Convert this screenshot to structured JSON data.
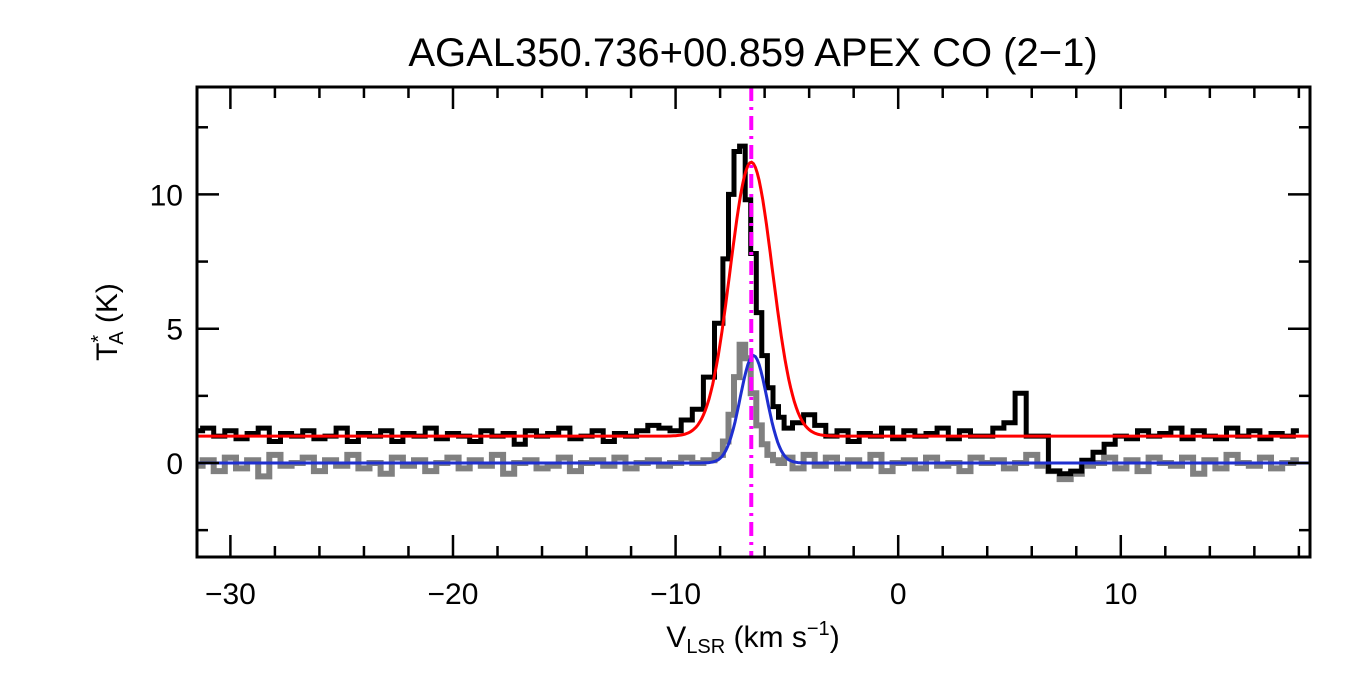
{
  "chart_data": {
    "type": "line",
    "title": "AGAL350.736+00.859  APEX CO (2−1)",
    "xlabel": {
      "main": "V",
      "sub": "LSR",
      "unit_pre": " (km s",
      "sup": "−1",
      "unit_post": ")"
    },
    "ylabel": {
      "main": "T",
      "sub": "A",
      "sup": "*",
      "unit": " (K)"
    },
    "xlim": [
      -31.5,
      18.5
    ],
    "ylim": [
      -3.5,
      14.0
    ],
    "xticks": [
      -30,
      -20,
      -10,
      0,
      10
    ],
    "xtick_labels": [
      "−30",
      "−20",
      "−10",
      "0",
      "10"
    ],
    "yticks": [
      0,
      5,
      10
    ],
    "ytick_labels": [
      "0",
      "5",
      "10"
    ],
    "vline": {
      "x": -6.6,
      "color": "#ff00ff",
      "style": "dash-dot"
    },
    "series": [
      {
        "style": "step",
        "color": "#000000",
        "description": "observed spectrum (offset +1 K)",
        "x": [
          -31.5,
          -31.0,
          -30.5,
          -30.0,
          -29.5,
          -29.0,
          -28.5,
          -28.0,
          -27.5,
          -27.0,
          -26.5,
          -26.0,
          -25.5,
          -25.0,
          -24.5,
          -24.0,
          -23.5,
          -23.0,
          -22.5,
          -22.0,
          -21.5,
          -21.0,
          -20.5,
          -20.0,
          -19.5,
          -19.0,
          -18.5,
          -18.0,
          -17.5,
          -17.0,
          -16.5,
          -16.0,
          -15.5,
          -15.0,
          -14.5,
          -14.0,
          -13.5,
          -13.0,
          -12.5,
          -12.0,
          -11.5,
          -11.0,
          -10.5,
          -10.0,
          -9.5,
          -9.0,
          -8.5,
          -8.0,
          -7.75,
          -7.5,
          -7.25,
          -7.0,
          -6.75,
          -6.5,
          -6.25,
          -6.0,
          -5.75,
          -5.5,
          -5.25,
          -5.0,
          -4.5,
          -4.0,
          -3.5,
          -3.0,
          -2.5,
          -2.0,
          -1.5,
          -1.0,
          -0.5,
          0.0,
          0.5,
          1.0,
          1.5,
          2.0,
          2.5,
          3.0,
          3.5,
          4.0,
          4.5,
          5.0,
          5.5,
          6.0,
          6.5,
          7.0,
          7.5,
          8.0,
          8.5,
          9.0,
          9.5,
          10.0,
          10.5,
          11.0,
          11.5,
          12.0,
          12.5,
          13.0,
          13.5,
          14.0,
          14.5,
          15.0,
          15.5,
          16.0,
          16.5,
          17.0,
          17.5,
          18.0
        ],
        "y": [
          1.2,
          1.3,
          1.0,
          1.2,
          0.9,
          1.1,
          1.3,
          0.8,
          1.1,
          1.0,
          1.2,
          0.9,
          1.0,
          1.3,
          0.8,
          1.1,
          1.0,
          1.2,
          0.8,
          1.1,
          1.0,
          1.3,
          0.9,
          1.1,
          1.0,
          0.8,
          1.2,
          1.0,
          1.1,
          0.7,
          1.2,
          1.0,
          1.1,
          1.3,
          0.9,
          1.0,
          1.2,
          0.8,
          1.1,
          1.0,
          1.2,
          1.4,
          1.3,
          1.2,
          1.6,
          2.0,
          3.2,
          5.2,
          7.6,
          10.0,
          11.6,
          11.8,
          9.8,
          7.8,
          5.6,
          4.0,
          2.8,
          2.1,
          1.7,
          1.3,
          1.5,
          1.8,
          1.4,
          1.0,
          1.2,
          0.8,
          1.1,
          1.0,
          1.3,
          0.9,
          1.2,
          1.0,
          1.1,
          1.3,
          0.9,
          1.2,
          1.0,
          1.0,
          1.3,
          1.5,
          2.6,
          1.0,
          1.0,
          -0.3,
          -0.4,
          -0.3,
          0.1,
          0.4,
          0.7,
          1.0,
          0.9,
          1.2,
          1.0,
          1.1,
          1.3,
          0.9,
          1.2,
          1.0,
          0.9,
          1.3,
          1.0,
          1.2,
          0.9,
          1.1,
          1.0,
          1.2
        ]
      },
      {
        "style": "step",
        "color": "#808080",
        "description": "residual spectrum",
        "x": [
          -31.5,
          -31.0,
          -30.5,
          -30.0,
          -29.5,
          -29.0,
          -28.5,
          -28.0,
          -27.5,
          -27.0,
          -26.5,
          -26.0,
          -25.5,
          -25.0,
          -24.5,
          -24.0,
          -23.5,
          -23.0,
          -22.5,
          -22.0,
          -21.5,
          -21.0,
          -20.5,
          -20.0,
          -19.5,
          -19.0,
          -18.5,
          -18.0,
          -17.5,
          -17.0,
          -16.5,
          -16.0,
          -15.5,
          -15.0,
          -14.5,
          -14.0,
          -13.5,
          -13.0,
          -12.5,
          -12.0,
          -11.5,
          -11.0,
          -10.5,
          -10.0,
          -9.5,
          -9.0,
          -8.5,
          -8.0,
          -7.75,
          -7.5,
          -7.25,
          -7.0,
          -6.75,
          -6.5,
          -6.25,
          -6.0,
          -5.75,
          -5.5,
          -5.25,
          -5.0,
          -4.5,
          -4.0,
          -3.5,
          -3.0,
          -2.5,
          -2.0,
          -1.5,
          -1.0,
          -0.5,
          0.0,
          0.5,
          1.0,
          1.5,
          2.0,
          2.5,
          3.0,
          3.5,
          4.0,
          4.5,
          5.0,
          5.5,
          6.0,
          6.5,
          7.0,
          7.5,
          8.0,
          8.5,
          9.0,
          9.5,
          10.0,
          10.5,
          11.0,
          11.5,
          12.0,
          12.5,
          13.0,
          13.5,
          14.0,
          14.5,
          15.0,
          15.5,
          16.0,
          16.5,
          17.0,
          17.5,
          18.0
        ],
        "y": [
          -0.1,
          0.1,
          -0.3,
          0.2,
          -0.2,
          0.1,
          -0.5,
          0.3,
          -0.1,
          0.0,
          0.2,
          -0.3,
          0.1,
          -0.1,
          0.3,
          -0.2,
          0.0,
          -0.4,
          0.2,
          -0.1,
          0.1,
          -0.3,
          0.0,
          0.2,
          -0.2,
          0.1,
          -0.1,
          0.3,
          -0.4,
          0.0,
          0.1,
          -0.2,
          -0.1,
          0.2,
          -0.3,
          0.0,
          0.1,
          -0.1,
          0.2,
          -0.2,
          0.0,
          0.1,
          -0.1,
          0.0,
          0.2,
          0.0,
          0.1,
          0.3,
          0.8,
          1.8,
          3.2,
          4.4,
          3.9,
          2.6,
          1.4,
          0.7,
          0.3,
          0.1,
          0.0,
          0.2,
          -0.2,
          0.3,
          -0.1,
          0.2,
          -0.2,
          0.1,
          -0.1,
          0.3,
          -0.3,
          0.0,
          0.1,
          -0.2,
          0.2,
          -0.1,
          0.0,
          -0.3,
          0.2,
          0.0,
          0.1,
          -0.2,
          0.0,
          0.3,
          -0.1,
          -0.3,
          -0.6,
          -0.4,
          -0.1,
          0.0,
          0.2,
          -0.2,
          0.1,
          -0.3,
          0.2,
          0.0,
          -0.1,
          0.2,
          -0.4,
          0.1,
          -0.2,
          0.3,
          0.0,
          -0.1,
          0.2,
          -0.2,
          0.0,
          0.1
        ]
      },
      {
        "style": "gaussian",
        "color": "#ff0000",
        "description": "fit to observed",
        "amplitude": 10.2,
        "center": -6.6,
        "sigma": 0.95,
        "baseline": 1.0
      },
      {
        "style": "gaussian",
        "color": "#1f2fd0",
        "description": "fit to residual",
        "amplitude": 4.0,
        "center": -6.5,
        "sigma": 0.6,
        "baseline": 0.0
      }
    ]
  }
}
